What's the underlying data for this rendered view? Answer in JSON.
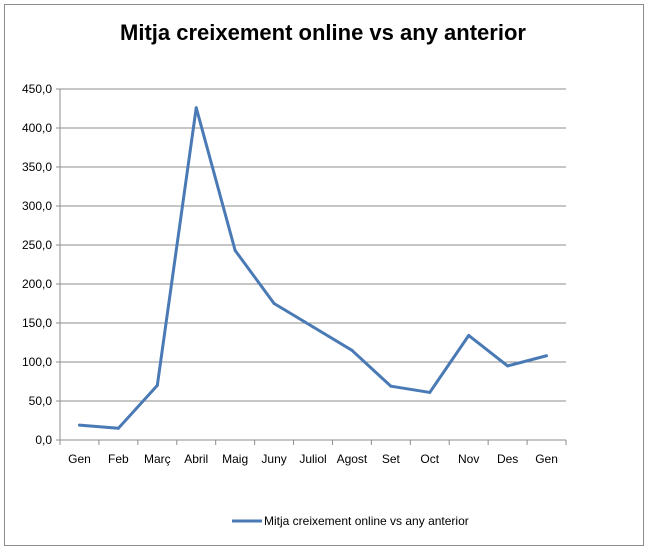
{
  "chart_data": {
    "type": "line",
    "title": "Mitja creixement online vs any anterior",
    "categories": [
      "Gen",
      "Feb",
      "Març",
      "Abril",
      "Maig",
      "Juny",
      "Juliol",
      "Agost",
      "Set",
      "Oct",
      "Nov",
      "Des",
      "Gen"
    ],
    "series": [
      {
        "name": "Mitja creixement online vs any anterior",
        "color": "#4a7ab5",
        "values": [
          19,
          15,
          70,
          426,
          243,
          175,
          145,
          115,
          69,
          61,
          134,
          95,
          108
        ]
      }
    ],
    "yticks": [
      "0,0",
      "50,0",
      "100,0",
      "150,0",
      "200,0",
      "250,0",
      "300,0",
      "350,0",
      "400,0",
      "450,0"
    ],
    "ylim": [
      0,
      450
    ],
    "grid": true,
    "legend_position": "bottom"
  }
}
